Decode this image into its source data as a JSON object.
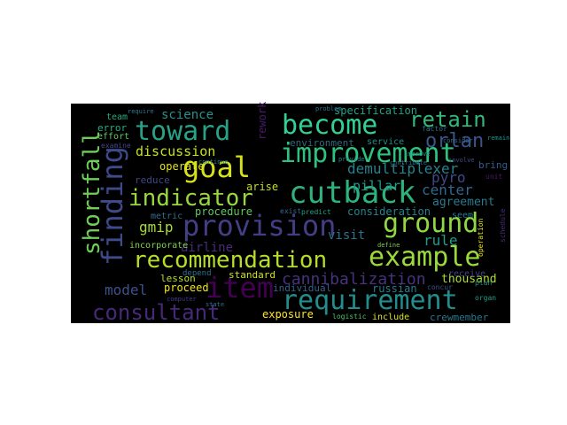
{
  "word_cloud": {
    "background": "#000000",
    "words": [
      {
        "text": "improvement",
        "color": "#2ec27e"
      },
      {
        "text": "become",
        "color": "#33d095"
      },
      {
        "text": "retain",
        "color": "#35b779"
      },
      {
        "text": "toward",
        "color": "#27a288"
      },
      {
        "text": "science",
        "color": "#2d8f8e"
      },
      {
        "text": "goal",
        "color": "#d7e219"
      },
      {
        "text": "discussion",
        "color": "#c5e021"
      },
      {
        "text": "orlan",
        "color": "#3a548c"
      },
      {
        "text": "cutback",
        "color": "#2eb37c"
      },
      {
        "text": "indicator",
        "color": "#97d83f"
      },
      {
        "text": "finding",
        "color": "#3e4a89"
      },
      {
        "text": "shortfall",
        "color": "#6ece58"
      },
      {
        "text": "provision",
        "color": "#433e85"
      },
      {
        "text": "ground",
        "color": "#90d743"
      },
      {
        "text": "gmip",
        "color": "#a8db34"
      },
      {
        "text": "recommendation",
        "color": "#b5de2b"
      },
      {
        "text": "example",
        "color": "#9bd93c"
      },
      {
        "text": "item",
        "color": "#440154"
      },
      {
        "text": "requirement",
        "color": "#228d8d"
      },
      {
        "text": "consultant",
        "color": "#482979"
      },
      {
        "text": "cannibalization",
        "color": "#46327e"
      },
      {
        "text": "model",
        "color": "#3b528b"
      },
      {
        "text": "airline",
        "color": "#472c7a"
      },
      {
        "text": "demultiplexer",
        "color": "#26828e"
      },
      {
        "text": "pillar",
        "color": "#1f9a8a"
      },
      {
        "text": "center",
        "color": "#31688e"
      },
      {
        "text": "agreement",
        "color": "#2a788e"
      },
      {
        "text": "rule",
        "color": "#1f9e89"
      },
      {
        "text": "pyro",
        "color": "#3e4989"
      },
      {
        "text": "visit",
        "color": "#2c728e"
      },
      {
        "text": "consideration",
        "color": "#25848e"
      },
      {
        "text": "procedure",
        "color": "#5ec962"
      },
      {
        "text": "specification",
        "color": "#20a386"
      },
      {
        "text": "environment",
        "color": "#30697e"
      },
      {
        "text": "operate",
        "color": "#e0e21a"
      },
      {
        "text": "arise",
        "color": "#bddf26"
      },
      {
        "text": "standard",
        "color": "#d2e21b"
      },
      {
        "text": "proceed",
        "color": "#f1e51d"
      },
      {
        "text": "lesson",
        "color": "#b8de29"
      },
      {
        "text": "individual",
        "color": "#34618d"
      },
      {
        "text": "russian",
        "color": "#2a7b8e"
      },
      {
        "text": "thousand",
        "color": "#addc30"
      },
      {
        "text": "crewmember",
        "color": "#2b768e"
      },
      {
        "text": "exposure",
        "color": "#fde725"
      },
      {
        "text": "include",
        "color": "#dde318"
      },
      {
        "text": "metric",
        "color": "#30708e"
      },
      {
        "text": "incorporate",
        "color": "#7fd34e"
      },
      {
        "text": "reduce",
        "color": "#3f4788"
      },
      {
        "text": "error",
        "color": "#26ad81"
      },
      {
        "text": "effort",
        "color": "#65cb5e"
      },
      {
        "text": "team",
        "color": "#25ab82"
      },
      {
        "text": "examine",
        "color": "#3f4889"
      },
      {
        "text": "service",
        "color": "#21918c"
      },
      {
        "text": "bring",
        "color": "#38598c"
      },
      {
        "text": "seem",
        "color": "#2a788e"
      },
      {
        "text": "receive",
        "color": "#404588"
      },
      {
        "text": "logistic",
        "color": "#4ac16d"
      },
      {
        "text": "depend",
        "color": "#2d708e"
      },
      {
        "text": "rework",
        "color": "#481a6c"
      },
      {
        "text": "contribute",
        "color": "#2f6b8e"
      },
      {
        "text": "provide",
        "color": "#25838e"
      },
      {
        "text": "improve",
        "color": "#1e9c89"
      },
      {
        "text": "involve",
        "color": "#3c4f8a"
      },
      {
        "text": "unit",
        "color": "#48186a"
      },
      {
        "text": "exist",
        "color": "#2f6c8e"
      },
      {
        "text": "predict",
        "color": "#21a585"
      },
      {
        "text": "define",
        "color": "#7ad151"
      },
      {
        "text": "plan",
        "color": "#23898e"
      },
      {
        "text": "organ",
        "color": "#1fa088"
      },
      {
        "text": "concur",
        "color": "#3a538b"
      },
      {
        "text": "operation",
        "color": "#e5e419"
      },
      {
        "text": "schedule",
        "color": "#472d7b"
      },
      {
        "text": "factor",
        "color": "#2e6e8e"
      },
      {
        "text": "consider",
        "color": "#2f6b8e"
      },
      {
        "text": "remain",
        "color": "#1f958b"
      },
      {
        "text": "require",
        "color": "#2a778e"
      },
      {
        "text": "problem",
        "color": "#2b758e"
      },
      {
        "text": "state",
        "color": "#2c718e"
      },
      {
        "text": "computer",
        "color": "#433d84"
      },
      {
        "text": "continue",
        "color": "#238a8d"
      }
    ]
  }
}
